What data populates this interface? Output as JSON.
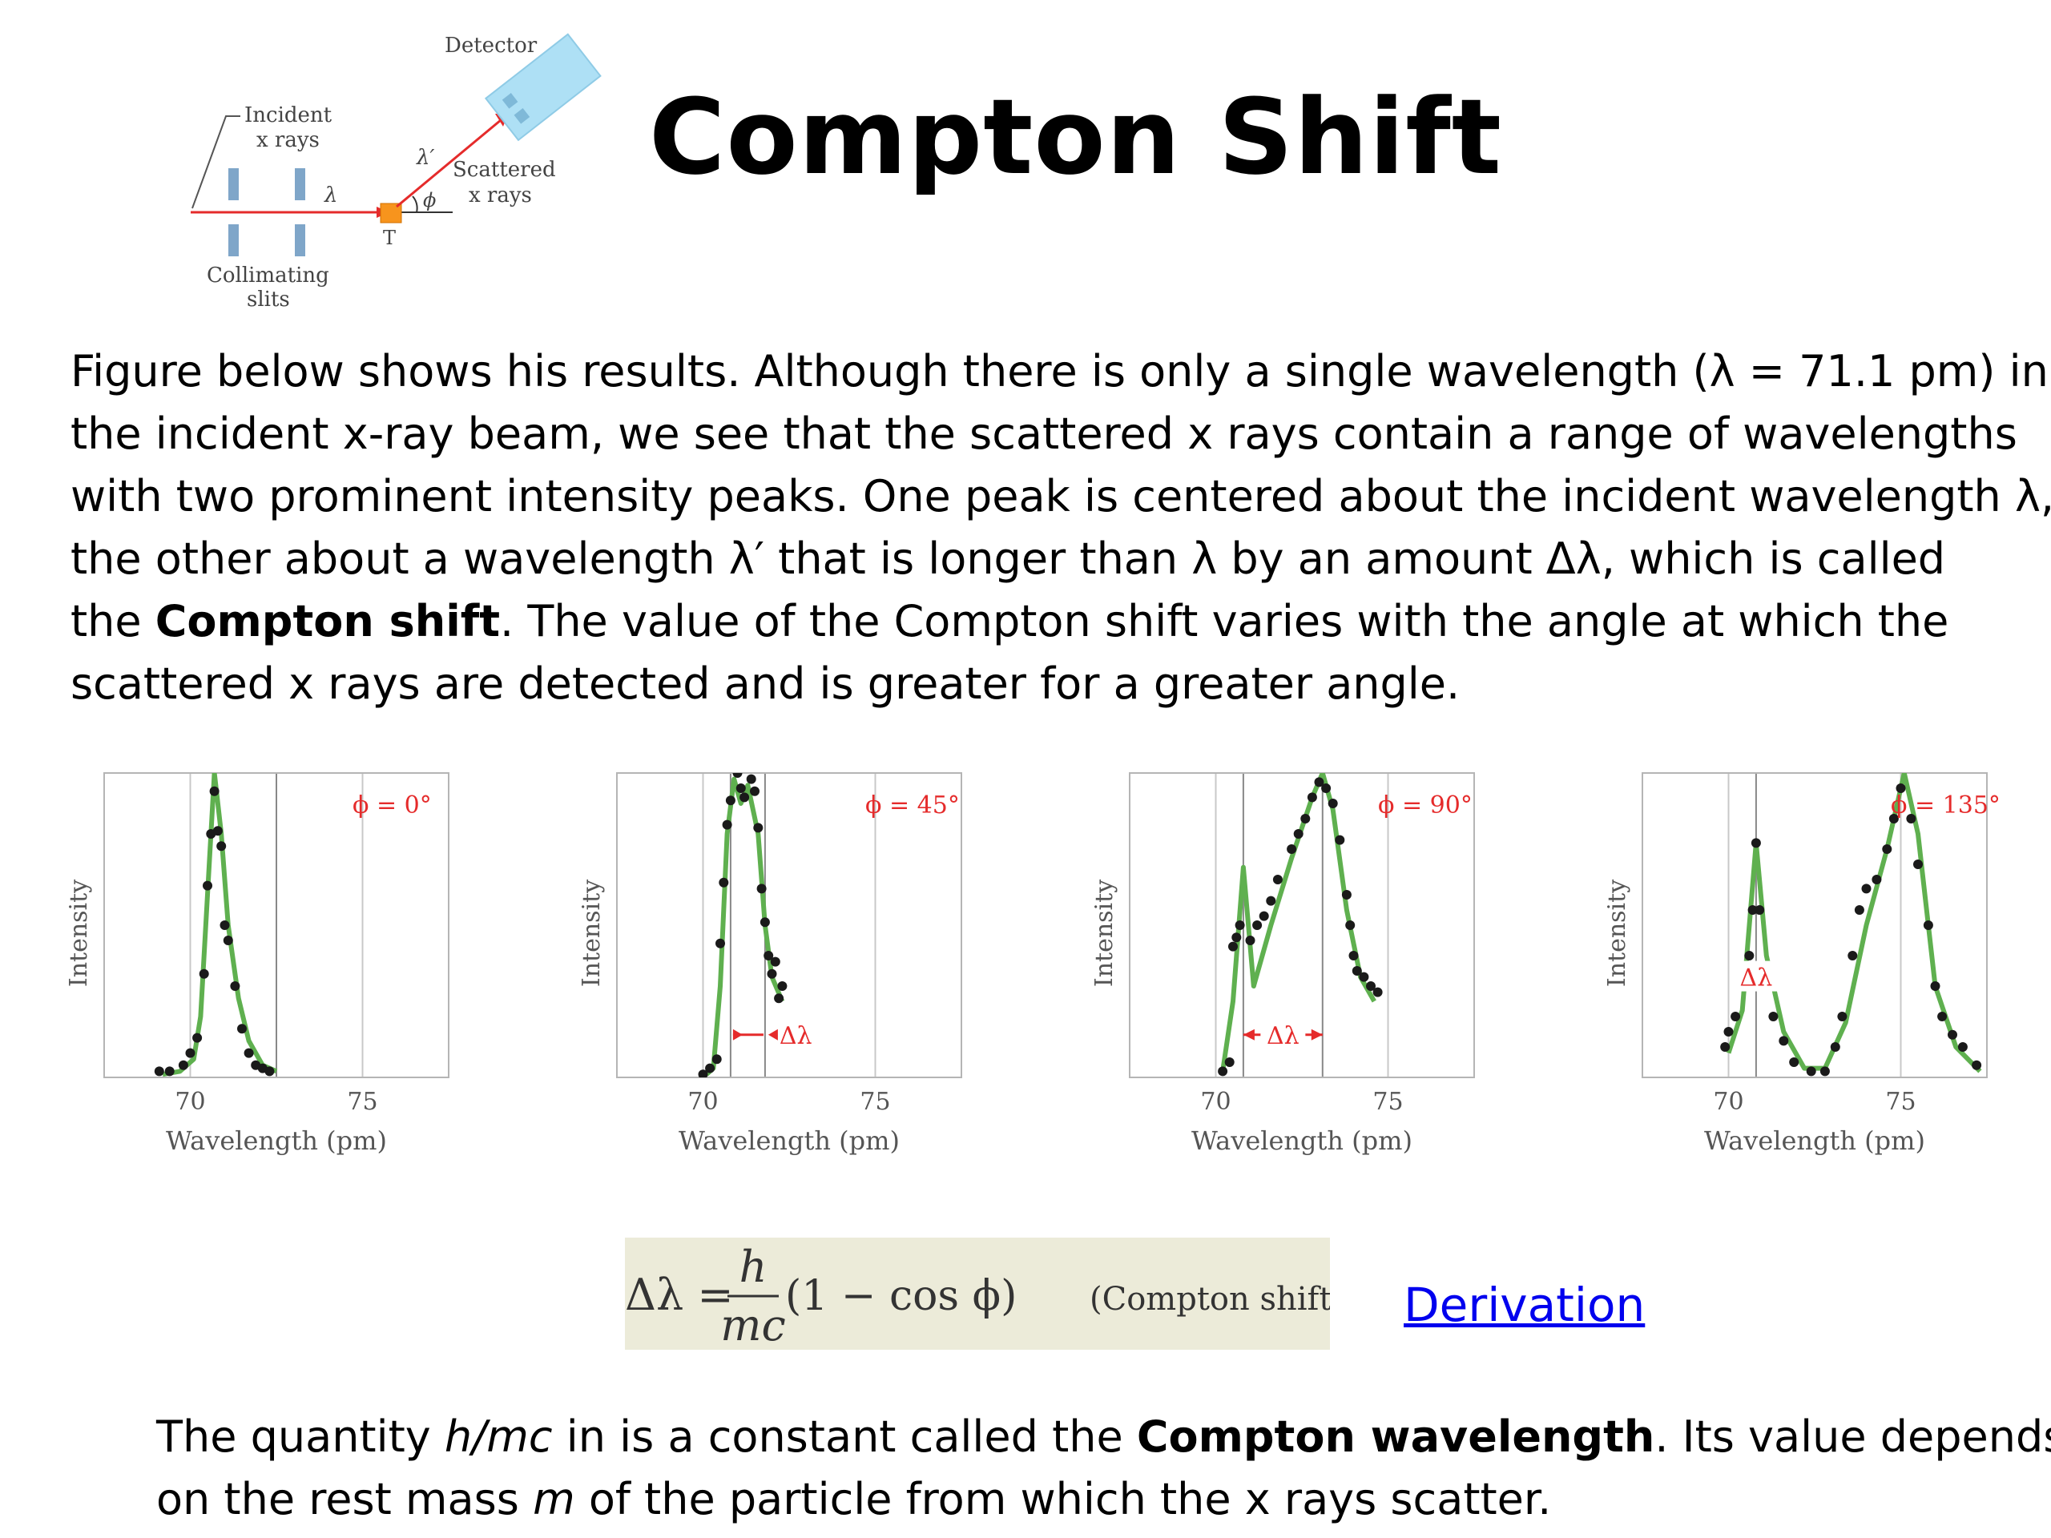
{
  "slide": {
    "title": "Compton Shift"
  },
  "apparatus": {
    "label_detector": "Detector",
    "label_incident_1": "Incident",
    "label_incident_2": "x rays",
    "label_scattered_1": "Scattered",
    "label_scattered_2": "x rays",
    "label_collimating_1": "Collimating",
    "label_collimating_2": "slits",
    "label_target": "T",
    "label_lambda": "λ",
    "label_lambda_prime": "λ′",
    "label_phi": "ϕ"
  },
  "paragraph": {
    "line1": "Figure below shows his results. Although there is only a single wavelength (λ = 71.1 pm) in",
    "line2": "the incident x-ray beam, we see that the scattered x rays contain a range of wavelengths",
    "line3": "with two prominent intensity peaks. One peak is centered about the incident wavelength λ,",
    "line4": "the other about a wavelength λ′ that is longer than λ by an amount Δλ, which is called",
    "line5_pre": "the ",
    "line5_bold": "Compton shift",
    "line5_post": ". The value of the Compton shift varies with the angle at which the",
    "line6": "scattered x rays are detected and is greater for a greater angle."
  },
  "chart_data": [
    {
      "type": "scatter",
      "angle_label": "ϕ = 0°",
      "xlabel": "Wavelength (pm)",
      "ylabel": "Intensity",
      "xlim": [
        67.5,
        77.5
      ],
      "ylim": [
        0,
        1
      ],
      "x_ticks": [
        "70",
        "75"
      ],
      "reference_lines": [
        70.0,
        72.5,
        75.0
      ],
      "delta_label": "",
      "points": [
        [
          69.1,
          0.02
        ],
        [
          69.4,
          0.02
        ],
        [
          69.8,
          0.04
        ],
        [
          70.0,
          0.08
        ],
        [
          70.2,
          0.13
        ],
        [
          70.4,
          0.34
        ],
        [
          70.5,
          0.63
        ],
        [
          70.6,
          0.8
        ],
        [
          70.7,
          0.94
        ],
        [
          70.8,
          0.81
        ],
        [
          70.9,
          0.76
        ],
        [
          71.0,
          0.5
        ],
        [
          71.1,
          0.45
        ],
        [
          71.3,
          0.3
        ],
        [
          71.5,
          0.16
        ],
        [
          71.7,
          0.08
        ],
        [
          71.9,
          0.04
        ],
        [
          72.1,
          0.03
        ],
        [
          72.3,
          0.02
        ]
      ],
      "curve": [
        [
          69.2,
          0.01
        ],
        [
          69.7,
          0.02
        ],
        [
          70.1,
          0.06
        ],
        [
          70.3,
          0.2
        ],
        [
          70.5,
          0.6
        ],
        [
          70.7,
          1.0
        ],
        [
          70.9,
          0.8
        ],
        [
          71.1,
          0.5
        ],
        [
          71.4,
          0.26
        ],
        [
          71.7,
          0.12
        ],
        [
          72.1,
          0.04
        ],
        [
          72.5,
          0.02
        ]
      ]
    },
    {
      "type": "scatter",
      "angle_label": "ϕ = 45°",
      "xlabel": "Wavelength (pm)",
      "ylabel": "Intensity",
      "xlim": [
        67.5,
        77.5
      ],
      "ylim": [
        0,
        1
      ],
      "x_ticks": [
        "70",
        "75"
      ],
      "reference_lines": [
        70.0,
        70.8,
        71.8,
        75.0
      ],
      "delta_label": "Δλ",
      "points": [
        [
          70.0,
          0.01
        ],
        [
          70.2,
          0.03
        ],
        [
          70.4,
          0.06
        ],
        [
          70.5,
          0.44
        ],
        [
          70.6,
          0.64
        ],
        [
          70.7,
          0.83
        ],
        [
          70.8,
          0.91
        ],
        [
          71.0,
          1.0
        ],
        [
          71.1,
          0.95
        ],
        [
          71.2,
          0.92
        ],
        [
          71.4,
          0.98
        ],
        [
          71.5,
          0.94
        ],
        [
          71.6,
          0.82
        ],
        [
          71.7,
          0.62
        ],
        [
          71.8,
          0.51
        ],
        [
          71.9,
          0.4
        ],
        [
          72.0,
          0.34
        ],
        [
          72.1,
          0.38
        ],
        [
          72.2,
          0.26
        ],
        [
          72.3,
          0.3
        ]
      ],
      "curve": [
        [
          70.1,
          0.01
        ],
        [
          70.3,
          0.03
        ],
        [
          70.5,
          0.3
        ],
        [
          70.7,
          0.8
        ],
        [
          70.9,
          0.98
        ],
        [
          71.1,
          0.9
        ],
        [
          71.3,
          0.96
        ],
        [
          71.6,
          0.8
        ],
        [
          71.8,
          0.5
        ],
        [
          72.0,
          0.33
        ],
        [
          72.3,
          0.25
        ]
      ]
    },
    {
      "type": "scatter",
      "angle_label": "ϕ = 90°",
      "xlabel": "Wavelength (pm)",
      "ylabel": "Intensity",
      "xlim": [
        67.5,
        77.5
      ],
      "ylim": [
        0,
        1
      ],
      "x_ticks": [
        "70",
        "75"
      ],
      "reference_lines": [
        70.0,
        70.8,
        73.1,
        75.0
      ],
      "delta_label": "Δλ",
      "points": [
        [
          70.2,
          0.02
        ],
        [
          70.4,
          0.05
        ],
        [
          70.5,
          0.43
        ],
        [
          70.6,
          0.46
        ],
        [
          70.7,
          0.5
        ],
        [
          71.0,
          0.45
        ],
        [
          71.2,
          0.5
        ],
        [
          71.4,
          0.53
        ],
        [
          71.6,
          0.58
        ],
        [
          71.8,
          0.65
        ],
        [
          72.2,
          0.75
        ],
        [
          72.4,
          0.8
        ],
        [
          72.6,
          0.85
        ],
        [
          72.8,
          0.92
        ],
        [
          73.0,
          0.97
        ],
        [
          73.2,
          0.95
        ],
        [
          73.4,
          0.9
        ],
        [
          73.6,
          0.78
        ],
        [
          73.8,
          0.6
        ],
        [
          73.9,
          0.5
        ],
        [
          74.0,
          0.4
        ],
        [
          74.1,
          0.35
        ],
        [
          74.3,
          0.33
        ],
        [
          74.5,
          0.3
        ],
        [
          74.7,
          0.28
        ]
      ],
      "curve": [
        [
          70.2,
          0.02
        ],
        [
          70.5,
          0.25
        ],
        [
          70.8,
          0.69
        ],
        [
          71.1,
          0.3
        ],
        [
          71.6,
          0.5
        ],
        [
          72.2,
          0.72
        ],
        [
          72.8,
          0.92
        ],
        [
          73.1,
          1.0
        ],
        [
          73.4,
          0.88
        ],
        [
          73.8,
          0.55
        ],
        [
          74.2,
          0.33
        ],
        [
          74.6,
          0.25
        ]
      ]
    },
    {
      "type": "scatter",
      "angle_label": "ϕ = 135°",
      "xlabel": "Wavelength (pm)",
      "ylabel": "Intensity",
      "xlim": [
        67.5,
        77.5
      ],
      "ylim": [
        0,
        1
      ],
      "x_ticks": [
        "70",
        "75"
      ],
      "reference_lines": [
        70.0,
        70.8,
        75.0
      ],
      "delta_label": "Δλ",
      "points": [
        [
          69.9,
          0.1
        ],
        [
          70.0,
          0.15
        ],
        [
          70.2,
          0.2
        ],
        [
          70.4,
          0.3
        ],
        [
          70.6,
          0.4
        ],
        [
          70.7,
          0.55
        ],
        [
          70.8,
          0.77
        ],
        [
          70.9,
          0.55
        ],
        [
          71.1,
          0.3
        ],
        [
          71.3,
          0.2
        ],
        [
          71.6,
          0.12
        ],
        [
          71.9,
          0.05
        ],
        [
          72.4,
          0.02
        ],
        [
          72.8,
          0.02
        ],
        [
          73.1,
          0.1
        ],
        [
          73.3,
          0.2
        ],
        [
          73.6,
          0.4
        ],
        [
          73.8,
          0.55
        ],
        [
          74.0,
          0.62
        ],
        [
          74.3,
          0.65
        ],
        [
          74.6,
          0.75
        ],
        [
          74.8,
          0.85
        ],
        [
          75.0,
          0.95
        ],
        [
          75.3,
          0.85
        ],
        [
          75.5,
          0.7
        ],
        [
          75.8,
          0.5
        ],
        [
          76.0,
          0.3
        ],
        [
          76.2,
          0.2
        ],
        [
          76.5,
          0.14
        ],
        [
          76.8,
          0.1
        ],
        [
          77.2,
          0.04
        ]
      ],
      "curve": [
        [
          70.0,
          0.08
        ],
        [
          70.4,
          0.22
        ],
        [
          70.8,
          0.77
        ],
        [
          71.1,
          0.4
        ],
        [
          71.6,
          0.15
        ],
        [
          72.2,
          0.03
        ],
        [
          72.8,
          0.03
        ],
        [
          73.4,
          0.18
        ],
        [
          74.0,
          0.5
        ],
        [
          74.6,
          0.75
        ],
        [
          75.1,
          1.0
        ],
        [
          75.5,
          0.8
        ],
        [
          76.0,
          0.3
        ],
        [
          76.6,
          0.1
        ],
        [
          77.3,
          0.02
        ]
      ]
    }
  ],
  "equation": {
    "lhs": "Δλ =",
    "numerator": "h",
    "denominator": "mc",
    "bracket": "(1 − cos ϕ)",
    "tag": "(Compton shift)."
  },
  "link": {
    "derivation_label": "Derivation"
  },
  "bottom": {
    "line1_pre": "The quantity ",
    "line1_italic": "h/mc",
    "line1_mid": " in is a constant called the ",
    "line1_bold": "Compton wavelength",
    "line1_post": ". Its value depends",
    "line2_pre": "on the rest mass ",
    "line2_italic": "m",
    "line2_post": " of the particle from which the x rays scatter."
  },
  "colors": {
    "curve": "#5fb04f",
    "point": "#1a1a1a",
    "accent_red": "#e52b2b",
    "target_orange": "#f7941d",
    "slit_blue": "#7fa6c9",
    "detector_blue": "#aee0f5",
    "equation_bg": "#ecebd9",
    "link": "#0000ee"
  }
}
